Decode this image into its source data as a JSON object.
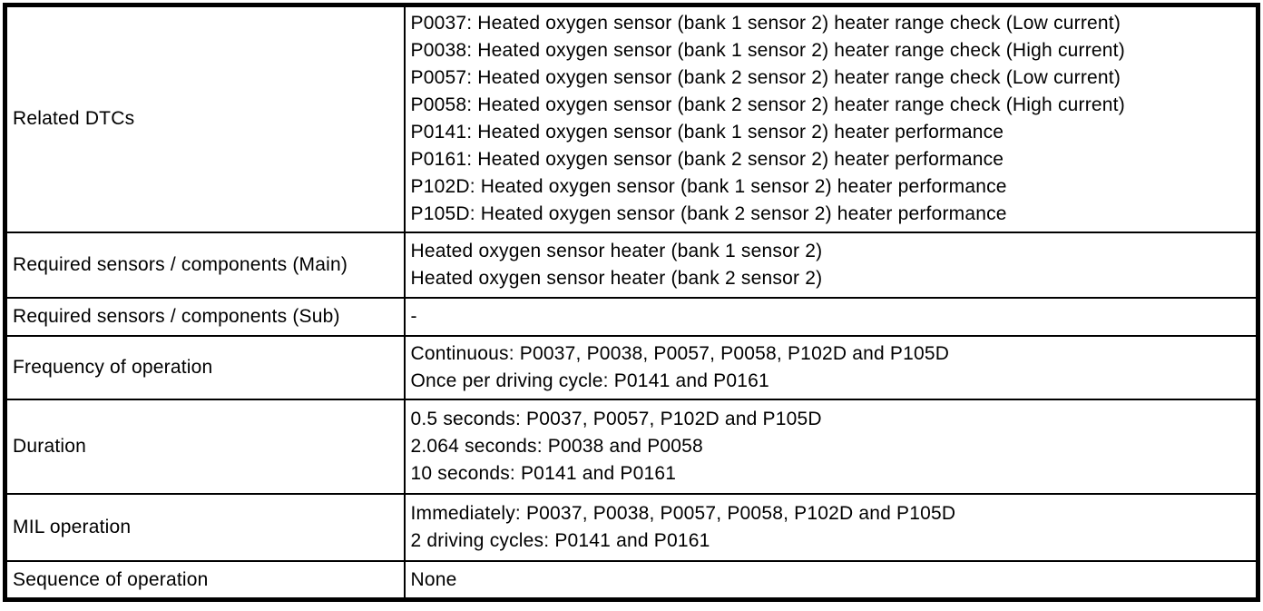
{
  "colors": {
    "border": "#000000",
    "background": "#ffffff",
    "text": "#000000"
  },
  "table": {
    "rows": [
      {
        "label": "Related DTCs",
        "lines": [
          "P0037: Heated oxygen sensor (bank 1 sensor 2) heater range check (Low current)",
          "P0038: Heated oxygen sensor (bank 1 sensor 2) heater range check (High current)",
          "P0057: Heated oxygen sensor (bank 2 sensor 2) heater range check (Low current)",
          "P0058: Heated oxygen sensor (bank 2 sensor 2) heater range check (High current)",
          "P0141: Heated oxygen sensor (bank 1 sensor 2) heater performance",
          "P0161: Heated oxygen sensor (bank 2 sensor 2) heater performance",
          "P102D: Heated oxygen sensor (bank 1 sensor 2) heater performance",
          "P105D: Heated oxygen sensor (bank 2 sensor 2) heater performance"
        ]
      },
      {
        "label": "Required sensors / components (Main)",
        "lines": [
          "Heated oxygen sensor heater (bank 1 sensor 2)",
          "Heated oxygen sensor heater (bank 2 sensor 2)"
        ]
      },
      {
        "label": "Required sensors / components (Sub)",
        "lines": [
          "-"
        ]
      },
      {
        "label": "Frequency of operation",
        "lines": [
          "Continuous: P0037, P0038, P0057, P0058, P102D and P105D",
          "Once per driving cycle: P0141 and P0161"
        ]
      },
      {
        "label": "Duration",
        "lines": [
          "0.5 seconds: P0037, P0057, P102D and P105D",
          "2.064 seconds: P0038 and P0058",
          "10 seconds: P0141 and P0161"
        ]
      },
      {
        "label": "MIL operation",
        "lines": [
          "Immediately: P0037, P0038, P0057, P0058, P102D and P105D",
          "2 driving cycles: P0141 and P0161"
        ]
      },
      {
        "label": "Sequence of operation",
        "lines": [
          "None"
        ]
      }
    ]
  }
}
